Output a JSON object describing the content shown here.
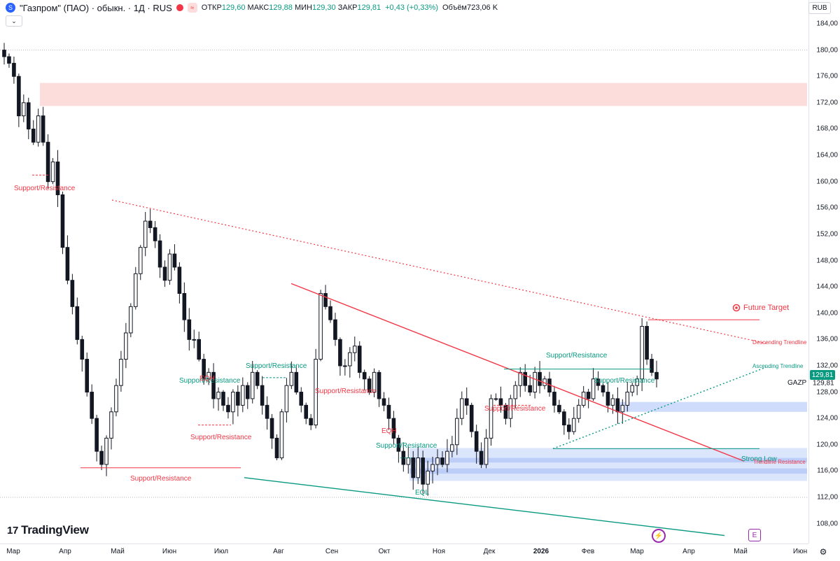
{
  "header": {
    "symbol_icon": "S",
    "title": "\"Газпром\" (ПАО) · обыкн. · 1Д · RUS",
    "ohlc": [
      {
        "k": "ОТКР",
        "v": "129,60"
      },
      {
        "k": "МАКС",
        "v": "129,88"
      },
      {
        "k": "МИН",
        "v": "129,30"
      },
      {
        "k": "ЗАКР",
        "v": "129,81"
      }
    ],
    "change": "+0,43 (+0,33%)",
    "volume_label": "Объём",
    "volume": "723,06 K",
    "collapse_icon": "chevron-down-icon",
    "currency": "RUB"
  },
  "price_scale": {
    "ticks": [
      "184,00",
      "180,00",
      "176,00",
      "172,00",
      "168,00",
      "164,00",
      "160,00",
      "156,00",
      "152,00",
      "148,00",
      "144,00",
      "140,00",
      "136,00",
      "132,00",
      "128,00",
      "124,00",
      "120,00",
      "116,00",
      "112,00",
      "108,00"
    ],
    "last_price": "129,81",
    "last_price_2": "129,81",
    "symbol": "GAZP"
  },
  "time_scale": {
    "ticks": [
      {
        "label": "Мар",
        "year": false
      },
      {
        "label": "Апр",
        "year": false
      },
      {
        "label": "Май",
        "year": false
      },
      {
        "label": "Июн",
        "year": false
      },
      {
        "label": "Июл",
        "year": false
      },
      {
        "label": "Авг",
        "year": false
      },
      {
        "label": "Сен",
        "year": false
      },
      {
        "label": "Окт",
        "year": false
      },
      {
        "label": "Ноя",
        "year": false
      },
      {
        "label": "Дек",
        "year": false
      },
      {
        "label": "2026",
        "year": true
      },
      {
        "label": "Фев",
        "year": false
      },
      {
        "label": "Мар",
        "year": false
      },
      {
        "label": "Апр",
        "year": false
      },
      {
        "label": "Май",
        "year": false
      },
      {
        "label": "Июн",
        "year": false
      }
    ]
  },
  "annotations": {
    "sr": "Support/Resistance",
    "eqh": "EQH",
    "eql": "EQL",
    "future_target": "Future Target",
    "descending": "Descending Trendline",
    "ascending": "Ascending Trendline",
    "strong_low": "Strong Low",
    "trendline_resistance": "Trendline Resistance"
  },
  "branding": {
    "logo": "TradingView"
  },
  "colors": {
    "up": "#089981",
    "down": "#131722",
    "red": "#f23645",
    "teal": "#089981",
    "zone_red": "#fddcdc",
    "zone_blue": "#cfdcfb"
  },
  "chart_data": {
    "type": "candlestick",
    "symbol": "GAZP",
    "timeframe": "1Д",
    "ylim": [
      106,
      186
    ],
    "x_range": [
      "2025-03",
      "2026-06"
    ],
    "series": [
      {
        "name": "GAZP",
        "values": [
          [
            179,
            178,
            176,
            170,
            172,
            168,
            166,
            170,
            166,
            160,
            163,
            158,
            150,
            145,
            141,
            136,
            133,
            128,
            124,
            119,
            117,
            121,
            125,
            129,
            133,
            137,
            141,
            146,
            150,
            154,
            153,
            151,
            147,
            145,
            149,
            147,
            143,
            139,
            136,
            136,
            133,
            130,
            131,
            127,
            128,
            126,
            125,
            128,
            126,
            129,
            127,
            131,
            129,
            126,
            124,
            121,
            118,
            125,
            129,
            131,
            128,
            126,
            124,
            123,
            133,
            143,
            141,
            139,
            136,
            132,
            132,
            134,
            135,
            131,
            130,
            128,
            131,
            127,
            126,
            124,
            121,
            119,
            117,
            118,
            115,
            118,
            114,
            116,
            117,
            118,
            117,
            119,
            120,
            124,
            127,
            126,
            122,
            119,
            117,
            121,
            127,
            127,
            126,
            124,
            127,
            129,
            131,
            129,
            128,
            131,
            129,
            130,
            128,
            126,
            125,
            123,
            122,
            124,
            126,
            128,
            127,
            130,
            129,
            128,
            126,
            127,
            125,
            126,
            128,
            129,
            130,
            138,
            133,
            131,
            130
          ]
        ]
      }
    ],
    "close_last": 129.81,
    "zones": [
      {
        "type": "resistance",
        "from": 171.5,
        "to": 175
      },
      {
        "type": "support",
        "from": 125,
        "to": 126.5
      },
      {
        "type": "support",
        "from": 114.5,
        "to": 119.5
      }
    ],
    "levels": [
      {
        "label": "Support/Resistance",
        "value": 161
      },
      {
        "label": "Support/Resistance",
        "value": 116.5
      },
      {
        "label": "Support/Resistance",
        "value": 123
      },
      {
        "label": "Support/Resistance",
        "value": 130
      },
      {
        "label": "Support/Resistance",
        "value": 130.5
      },
      {
        "label": "Support/Resistance",
        "value": 118
      },
      {
        "label": "Support/Resistance",
        "value": 126
      },
      {
        "label": "Support/Resistance",
        "value": 131.5
      },
      {
        "label": "Strong Low",
        "value": 119.3
      },
      {
        "label": "Future Target",
        "value": 139
      }
    ]
  }
}
